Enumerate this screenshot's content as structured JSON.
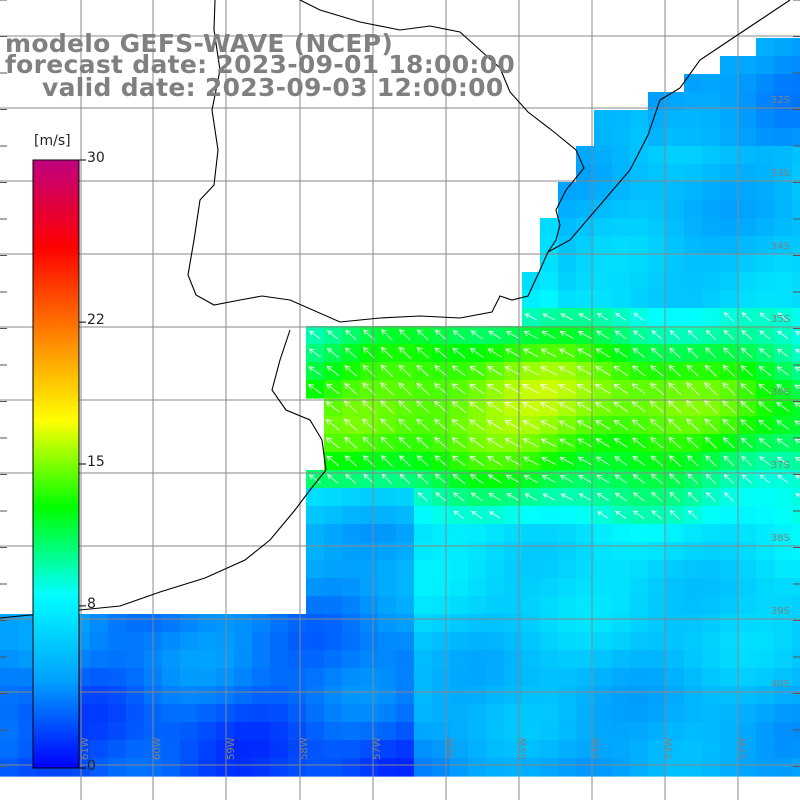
{
  "title": {
    "model": "modelo GEFS-WAVE (NCEP)",
    "forecast": "forecast date: 2023-09-01 18:00:00",
    "valid": "valid date: 2023-09-03 12:00:00"
  },
  "colorbar": {
    "unit": "[m/s]",
    "ticks": [
      {
        "label": "30",
        "value": 30
      },
      {
        "label": "22",
        "value": 22
      },
      {
        "label": "15",
        "value": 15
      },
      {
        "label": "8",
        "value": 8
      },
      {
        "label": "0",
        "value": 0
      }
    ],
    "stops": [
      "#0000ff",
      "#00a0ff",
      "#00ffff",
      "#00ff00",
      "#ffff00",
      "#ff8000",
      "#ff0000",
      "#c00080"
    ]
  },
  "latitude_labels": [
    "32S",
    "33S",
    "34S",
    "35S",
    "36S",
    "37S",
    "38S",
    "39S",
    "40S"
  ],
  "longitude_labels": [
    "61W",
    "60W",
    "59W",
    "58W",
    "57W",
    "56W",
    "55W",
    "54W",
    "53W",
    "52W"
  ],
  "colors": {
    "land": "#ffffff",
    "grid": "#888888",
    "coast": "#000000",
    "label": "#808080",
    "arrows": "#ffffff"
  }
}
